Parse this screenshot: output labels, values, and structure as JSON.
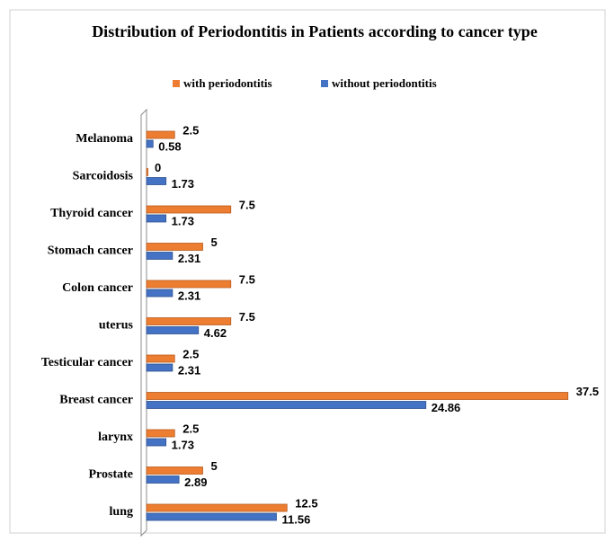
{
  "chart_data": {
    "type": "bar",
    "orientation": "horizontal",
    "title": "Distribution of Periodontitis in Patients according to cancer type",
    "categories": [
      "Melanoma",
      "Sarcoidosis",
      "Thyroid cancer",
      "Stomach cancer",
      "Colon cancer",
      "uterus",
      "Testicular cancer",
      "Breast cancer",
      "larynx",
      "Prostate",
      "lung"
    ],
    "series": [
      {
        "name": "with periodontitis",
        "color": "#ed7d31",
        "values": [
          2.5,
          0,
          7.5,
          5,
          7.5,
          7.5,
          2.5,
          37.5,
          2.5,
          5,
          12.5
        ]
      },
      {
        "name": "without periodontitis",
        "color": "#4472c4",
        "values": [
          0.58,
          1.73,
          1.73,
          2.31,
          2.31,
          4.62,
          2.31,
          24.86,
          1.73,
          2.89,
          11.56
        ]
      }
    ],
    "xlim": [
      0,
      40
    ],
    "legend": "top"
  }
}
